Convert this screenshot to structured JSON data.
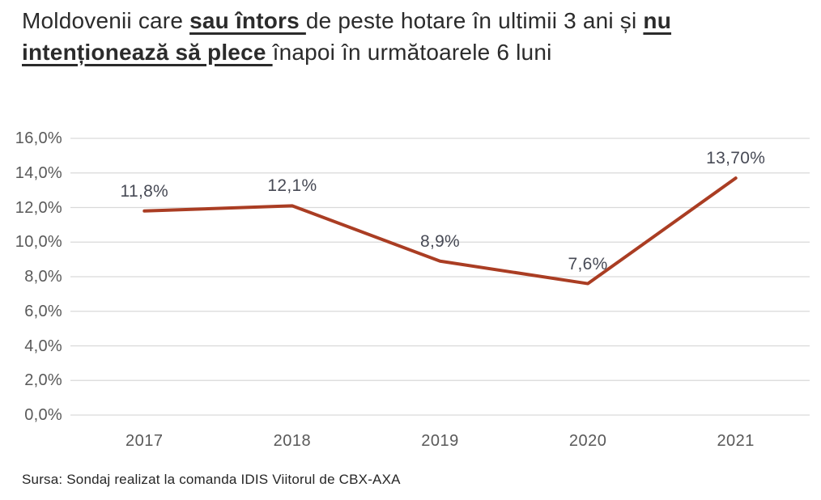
{
  "title": {
    "segments": [
      {
        "text": "Moldovenii care ",
        "emphasis": false
      },
      {
        "text": "sau întors ",
        "emphasis": true
      },
      {
        "text": "de peste hotare în ultimii 3 ani și ",
        "emphasis": false
      },
      {
        "text": "nu intenționează să plece ",
        "emphasis": true
      },
      {
        "text": "înapoi în următoarele 6 luni",
        "emphasis": false
      }
    ]
  },
  "source_note": "Sursa: Sondaj realizat la comanda IDIS Viitorul de CBX-AXA",
  "colors": {
    "series_line": "#AA3D23",
    "gridline": "#D9D9D9",
    "axis_label": "#595959",
    "data_label": "#474A55",
    "title_text": "#2B2B2B"
  },
  "chart_data": {
    "type": "line",
    "title": "",
    "xlabel": "",
    "ylabel": "",
    "categories": [
      "2017",
      "2018",
      "2019",
      "2020",
      "2021"
    ],
    "values": [
      11.8,
      12.1,
      8.9,
      7.6,
      13.7
    ],
    "data_labels": [
      "11,8%",
      "12,1%",
      "8,9%",
      "7,6%",
      "13,70%"
    ],
    "y_tick_labels": [
      "0,0%",
      "2,0%",
      "4,0%",
      "6,0%",
      "8,0%",
      "10,0%",
      "12,0%",
      "14,0%",
      "16,0%"
    ],
    "y_tick_values": [
      0,
      2,
      4,
      6,
      8,
      10,
      12,
      14,
      16
    ],
    "ylim": [
      0,
      16
    ],
    "grid": true,
    "legend": "none"
  }
}
